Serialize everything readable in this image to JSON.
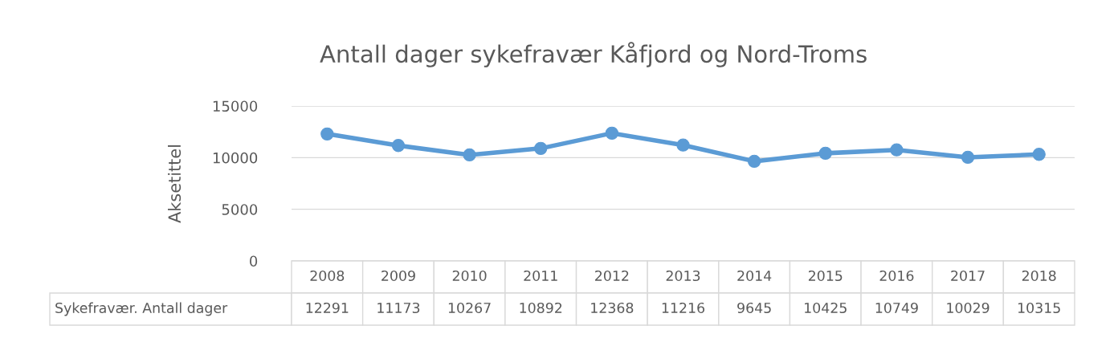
{
  "chart_data": {
    "type": "line",
    "title": "Antall dager sykefravær Kåfjord og Nord-Troms",
    "ylabel": "Aksetittel",
    "categories": [
      "2008",
      "2009",
      "2010",
      "2011",
      "2012",
      "2013",
      "2014",
      "2015",
      "2016",
      "2017",
      "2018"
    ],
    "series": [
      {
        "name": "Sykefravær. Antall dager",
        "color": "#5b9bd5",
        "values": [
          12291,
          11173,
          10267,
          10892,
          12368,
          11216,
          9645,
          10425,
          10749,
          10029,
          10315
        ]
      }
    ],
    "ylim": [
      0,
      15000
    ],
    "yticks": [
      0,
      5000,
      10000,
      15000
    ],
    "grid": "y",
    "marker": "circle",
    "line_style": "solid",
    "data_labels": true,
    "legend": false
  }
}
